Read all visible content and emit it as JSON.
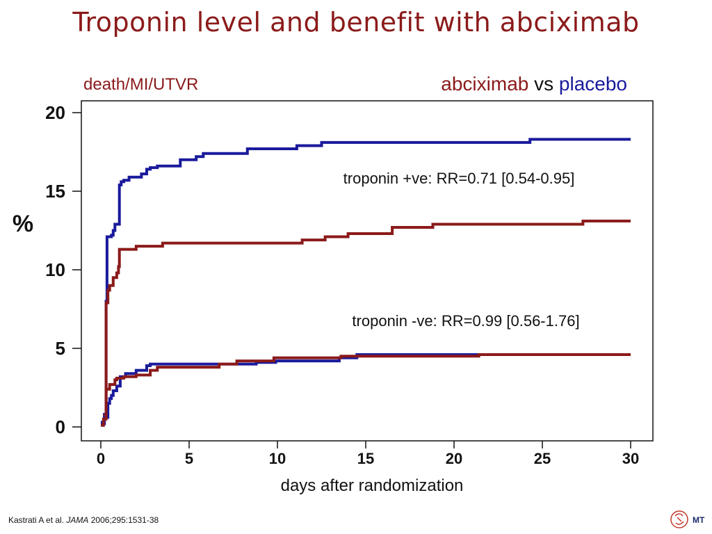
{
  "title": "Troponin level and benefit with abciximab",
  "legend": {
    "treatment": "abciximab",
    "vs": "vs",
    "control": "placebo"
  },
  "footer": {
    "authors": "Kastrati A et al.",
    "journal": "JAMA",
    "citation": "2006;295:1531-38"
  },
  "logo_text": "MT",
  "colors": {
    "abciximab": "#8b1a1a",
    "placebo": "#1a1a9c",
    "title": "#8b1a1a"
  },
  "chart_data": {
    "type": "line",
    "title": "",
    "ylabel_top": "death/MI/UTVR",
    "ylabel": "%",
    "xlabel": "days after randomization",
    "xlim": [
      0,
      30
    ],
    "ylim": [
      0,
      20
    ],
    "xticks": [
      0,
      5,
      10,
      15,
      20,
      25,
      30
    ],
    "yticks": [
      0,
      5,
      10,
      15,
      20
    ],
    "grid": false,
    "annotations": [
      {
        "text": "troponin +ve: RR=0.71 [0.54-0.95]",
        "x": 20.5,
        "y": 15.9
      },
      {
        "text": "troponin -ve: RR=0.99 [0.56-1.76]",
        "x": 20.8,
        "y": 6.8
      }
    ],
    "series": [
      {
        "name": "placebo (troponin +ve)",
        "group": "placebo",
        "points": [
          [
            0,
            0.3
          ],
          [
            0.2,
            0.8
          ],
          [
            0.3,
            3.0
          ],
          [
            0.3,
            8.0
          ],
          [
            0.35,
            12.1
          ],
          [
            0.6,
            12.2
          ],
          [
            0.7,
            12.5
          ],
          [
            0.8,
            12.9
          ],
          [
            1.0,
            12.9
          ],
          [
            1.05,
            15.4
          ],
          [
            1.15,
            15.6
          ],
          [
            1.3,
            15.7
          ],
          [
            1.6,
            15.9
          ],
          [
            2.3,
            16.1
          ],
          [
            2.6,
            16.4
          ],
          [
            2.8,
            16.5
          ],
          [
            3.2,
            16.6
          ],
          [
            4.5,
            17.0
          ],
          [
            5.4,
            17.2
          ],
          [
            5.8,
            17.4
          ],
          [
            8.3,
            17.7
          ],
          [
            11.1,
            17.9
          ],
          [
            12.5,
            18.1
          ],
          [
            24.3,
            18.3
          ],
          [
            30,
            18.3
          ]
        ]
      },
      {
        "name": "abciximab (troponin +ve)",
        "group": "abciximab",
        "points": [
          [
            0,
            0.2
          ],
          [
            0.2,
            0.7
          ],
          [
            0.3,
            2.5
          ],
          [
            0.3,
            7.9
          ],
          [
            0.4,
            8.7
          ],
          [
            0.5,
            9.0
          ],
          [
            0.7,
            9.5
          ],
          [
            0.9,
            9.8
          ],
          [
            1.0,
            10.2
          ],
          [
            1.05,
            11.3
          ],
          [
            2.0,
            11.5
          ],
          [
            3.5,
            11.7
          ],
          [
            11.4,
            11.9
          ],
          [
            12.7,
            12.1
          ],
          [
            14.0,
            12.3
          ],
          [
            16.5,
            12.7
          ],
          [
            18.8,
            12.9
          ],
          [
            27.3,
            13.1
          ],
          [
            30,
            13.1
          ]
        ]
      },
      {
        "name": "placebo (troponin -ve)",
        "group": "placebo",
        "points": [
          [
            0,
            0.2
          ],
          [
            0.2,
            0.6
          ],
          [
            0.4,
            1.5
          ],
          [
            0.5,
            1.8
          ],
          [
            0.6,
            2.0
          ],
          [
            0.7,
            2.3
          ],
          [
            0.9,
            2.6
          ],
          [
            1.1,
            3.2
          ],
          [
            1.4,
            3.4
          ],
          [
            2.0,
            3.6
          ],
          [
            2.6,
            3.9
          ],
          [
            2.8,
            4.0
          ],
          [
            8.8,
            4.1
          ],
          [
            9.9,
            4.2
          ],
          [
            13.5,
            4.4
          ],
          [
            14.5,
            4.6
          ],
          [
            30,
            4.6
          ]
        ]
      },
      {
        "name": "abciximab (troponin -ve)",
        "group": "abciximab",
        "points": [
          [
            0,
            0.1
          ],
          [
            0.15,
            0.5
          ],
          [
            0.3,
            2.4
          ],
          [
            0.5,
            2.7
          ],
          [
            0.8,
            3.0
          ],
          [
            0.9,
            3.1
          ],
          [
            1.3,
            3.2
          ],
          [
            2.0,
            3.3
          ],
          [
            2.8,
            3.6
          ],
          [
            3.2,
            3.8
          ],
          [
            6.7,
            4.0
          ],
          [
            7.7,
            4.2
          ],
          [
            9.8,
            4.4
          ],
          [
            13.6,
            4.5
          ],
          [
            21.4,
            4.6
          ],
          [
            30,
            4.6
          ]
        ]
      }
    ]
  }
}
